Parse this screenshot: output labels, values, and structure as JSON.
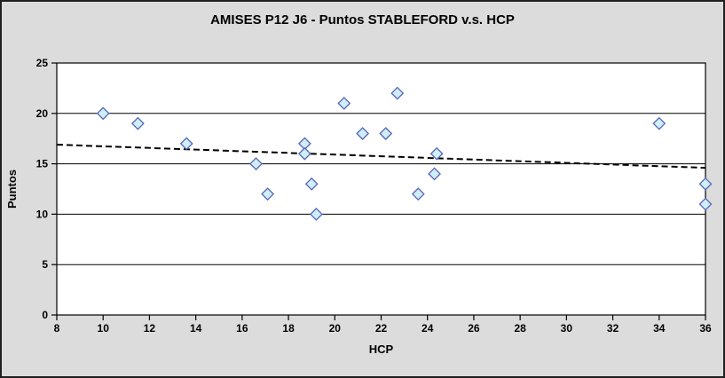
{
  "window": {
    "title": "AMISES P12 J6 - Puntos STABLEFORD v.s. HCP"
  },
  "colors": {
    "canvas_bg": "#dcdcdc",
    "canvas_border": "#1f1f1f",
    "plot_bg": "#ffffff",
    "gridline": "#000000",
    "axis": "#000000",
    "text": "#000000",
    "marker_fill": "#cfeef9",
    "marker_stroke": "#5565b5",
    "trendline": "#000000"
  },
  "chart_data": {
    "type": "scatter",
    "title": "AMISES P12 J6 - Puntos STABLEFORD v.s. HCP",
    "xlabel": "HCP",
    "ylabel": "Puntos",
    "xlim": [
      8,
      36
    ],
    "ylim": [
      0,
      25
    ],
    "x_ticks": [
      8,
      10,
      12,
      14,
      16,
      18,
      20,
      22,
      24,
      26,
      28,
      30,
      32,
      34,
      36
    ],
    "y_ticks": [
      0,
      5,
      10,
      15,
      20,
      25
    ],
    "grid": "horizontal-only",
    "legend_position": "none",
    "series": [
      {
        "name": "Puntos STABLEFORD",
        "marker": "diamond",
        "points": [
          [
            10,
            20
          ],
          [
            11.5,
            19
          ],
          [
            13.6,
            17
          ],
          [
            16.6,
            15
          ],
          [
            17.1,
            12
          ],
          [
            18.7,
            17
          ],
          [
            18.7,
            16
          ],
          [
            19,
            13
          ],
          [
            19.2,
            10
          ],
          [
            20.4,
            21
          ],
          [
            21.2,
            18
          ],
          [
            22.2,
            18
          ],
          [
            22.7,
            22
          ],
          [
            23.6,
            12
          ],
          [
            24.3,
            14
          ],
          [
            24.4,
            16
          ],
          [
            34,
            19
          ],
          [
            36,
            13
          ],
          [
            36,
            11
          ]
        ]
      }
    ],
    "trendline": {
      "type": "linear",
      "style": "dashed",
      "start": {
        "x": 8,
        "y": 16.9
      },
      "end": {
        "x": 36,
        "y": 14.6
      }
    }
  }
}
